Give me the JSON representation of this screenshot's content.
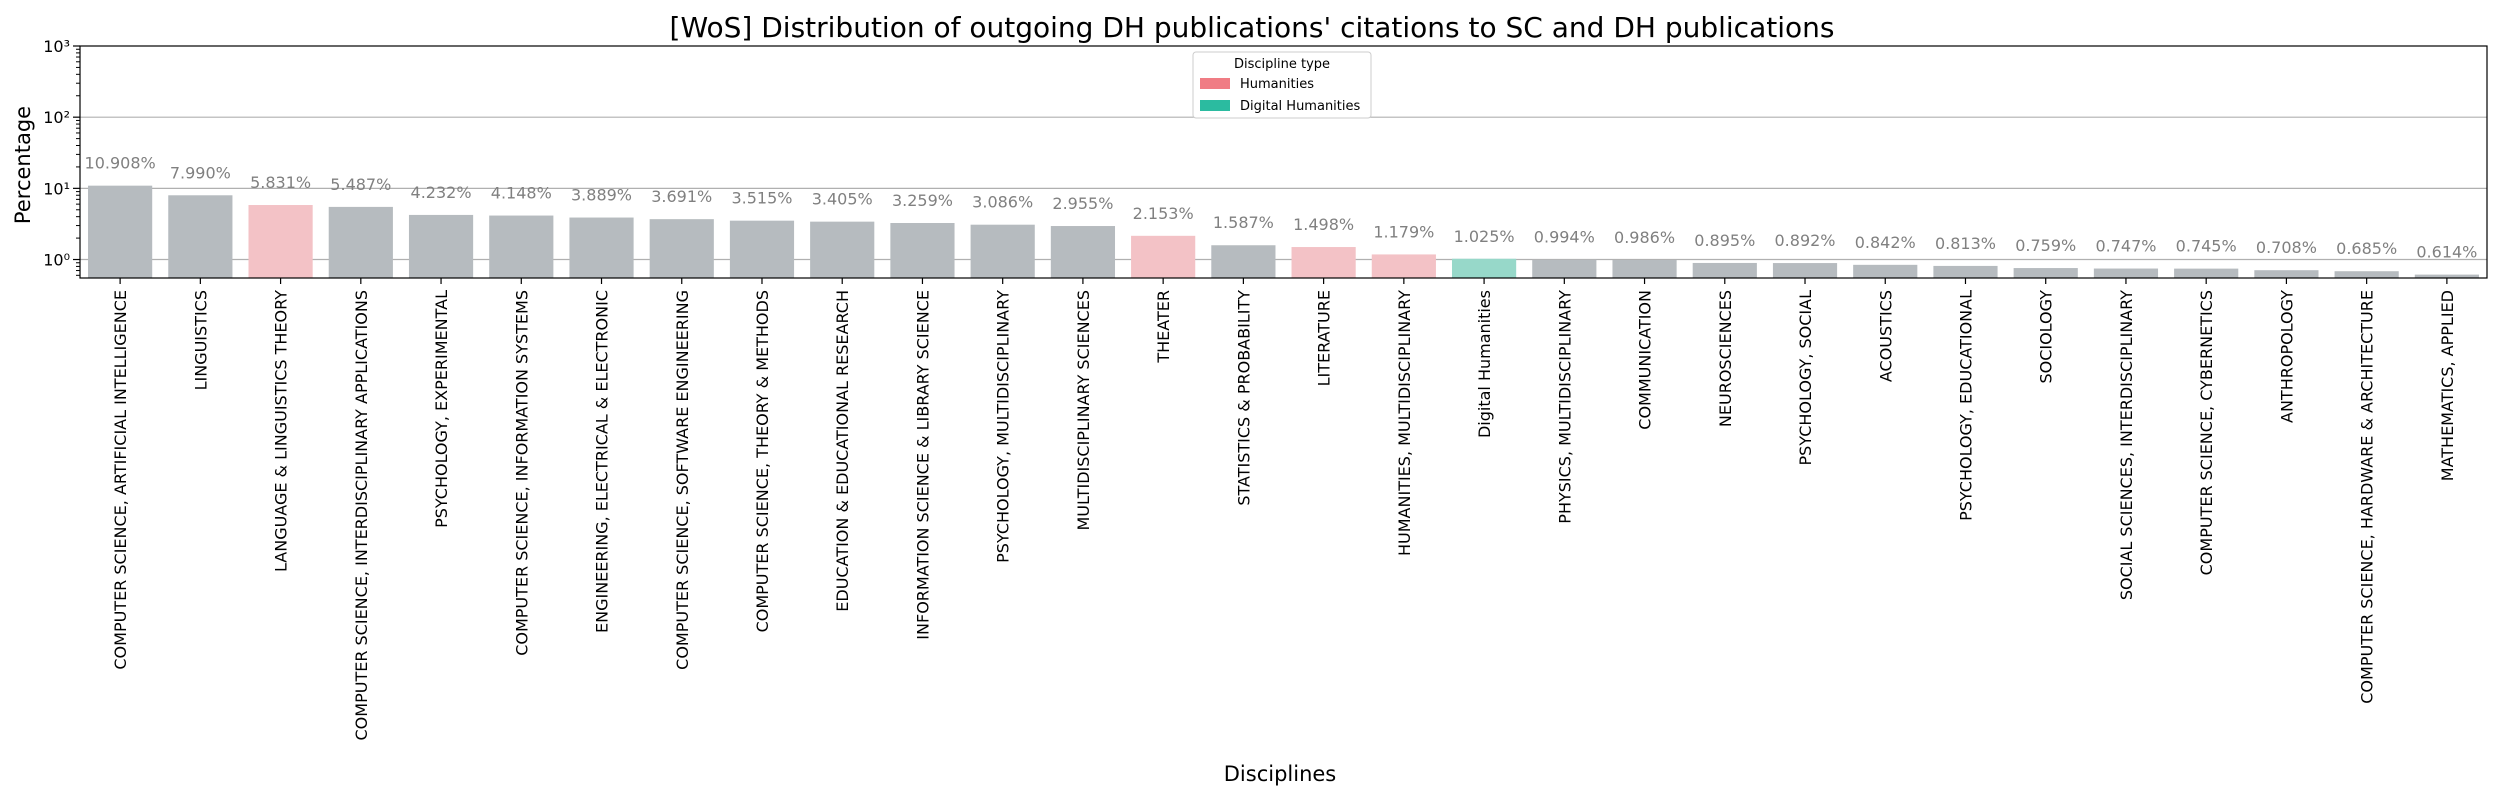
{
  "chart_data": {
    "type": "bar",
    "title": "[WoS] Distribution of outgoing DH publications' citations to SC and DH publications",
    "xlabel": "Disciplines",
    "ylabel": "Percentage",
    "yscale": "log",
    "ylim": [
      0.55,
      1000
    ],
    "yticks": [
      {
        "value": 1,
        "label": "10⁰"
      },
      {
        "value": 10,
        "label": "10¹"
      },
      {
        "value": 100,
        "label": "10²"
      },
      {
        "value": 1000,
        "label": "10³"
      }
    ],
    "grid": "horizontal",
    "legend": {
      "title": "Discipline type",
      "position": "top-center",
      "entries": [
        {
          "label": "Humanities",
          "color": "#f07c84"
        },
        {
          "label": "Digital Humanities",
          "color": "#2bbba0"
        }
      ]
    },
    "colors": {
      "other": "#b6bbbf",
      "Humanities": "#f3c2c6",
      "Digital Humanities": "#97d8c9"
    },
    "categories": [
      "COMPUTER SCIENCE, ARTIFICIAL INTELLIGENCE",
      "LINGUISTICS",
      "LANGUAGE & LINGUISTICS THEORY",
      "COMPUTER SCIENCE, INTERDISCIPLINARY APPLICATIONS",
      "PSYCHOLOGY, EXPERIMENTAL",
      "COMPUTER SCIENCE, INFORMATION SYSTEMS",
      "ENGINEERING, ELECTRICAL & ELECTRONIC",
      "COMPUTER SCIENCE, SOFTWARE ENGINEERING",
      "COMPUTER SCIENCE, THEORY & METHODS",
      "EDUCATION & EDUCATIONAL RESEARCH",
      "INFORMATION SCIENCE & LIBRARY SCIENCE",
      "PSYCHOLOGY, MULTIDISCIPLINARY",
      "MULTIDISCIPLINARY SCIENCES",
      "THEATER",
      "STATISTICS & PROBABILITY",
      "LITERATURE",
      "HUMANITIES, MULTIDISCIPLINARY",
      "Digital Humanities",
      "PHYSICS, MULTIDISCIPLINARY",
      "COMMUNICATION",
      "NEUROSCIENCES",
      "PSYCHOLOGY, SOCIAL",
      "ACOUSTICS",
      "PSYCHOLOGY, EDUCATIONAL",
      "SOCIOLOGY",
      "SOCIAL SCIENCES, INTERDISCIPLINARY",
      "COMPUTER SCIENCE, CYBERNETICS",
      "ANTHROPOLOGY",
      "COMPUTER SCIENCE, HARDWARE & ARCHITECTURE",
      "MATHEMATICS, APPLIED"
    ],
    "values": [
      10.908,
      7.99,
      5.831,
      5.487,
      4.232,
      4.148,
      3.889,
      3.691,
      3.515,
      3.405,
      3.259,
      3.086,
      2.955,
      2.153,
      1.587,
      1.498,
      1.179,
      1.025,
      0.994,
      0.986,
      0.895,
      0.892,
      0.842,
      0.813,
      0.759,
      0.747,
      0.745,
      0.708,
      0.685,
      0.614
    ],
    "value_labels": [
      "10.908%",
      "7.990%",
      "5.831%",
      "5.487%",
      "4.232%",
      "4.148%",
      "3.889%",
      "3.691%",
      "3.515%",
      "3.405%",
      "3.259%",
      "3.086%",
      "2.955%",
      "2.153%",
      "1.587%",
      "1.498%",
      "1.179%",
      "1.025%",
      "0.994%",
      "0.986%",
      "0.895%",
      "0.892%",
      "0.842%",
      "0.813%",
      "0.759%",
      "0.747%",
      "0.745%",
      "0.708%",
      "0.685%",
      "0.614%"
    ],
    "discipline_types": [
      "other",
      "other",
      "Humanities",
      "other",
      "other",
      "other",
      "other",
      "other",
      "other",
      "other",
      "other",
      "other",
      "other",
      "Humanities",
      "other",
      "Humanities",
      "Humanities",
      "Digital Humanities",
      "other",
      "other",
      "other",
      "other",
      "other",
      "other",
      "other",
      "other",
      "other",
      "other",
      "other",
      "other"
    ]
  }
}
